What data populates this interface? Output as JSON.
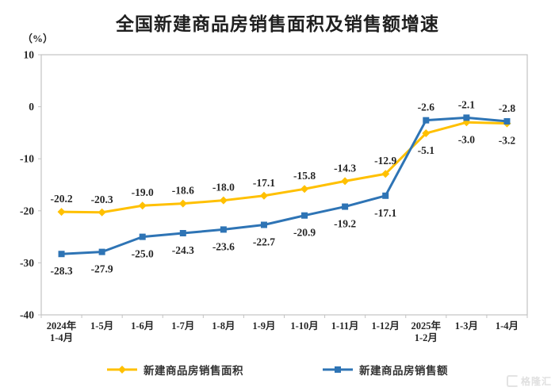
{
  "chart": {
    "title": "全国新建商品房销售面积及销售额增速",
    "unit_label": "（%）",
    "watermark": "格隆汇"
  },
  "colors": {
    "sales_area_accent": "#FFC000",
    "sales_amount_accent": "#2E74B5",
    "frame": "#c3c3c3",
    "text": "#262626"
  },
  "chart_data": {
    "type": "line",
    "title": "全国新建商品房销售面积及销售额增速",
    "ylabel": "（%）",
    "xlabel": "",
    "grid": false,
    "legend_position": "bottom",
    "ylim": [
      -40,
      10
    ],
    "y_ticks": [
      10,
      0,
      -10,
      -20,
      -30,
      -40
    ],
    "categories": [
      "2024年\n1-4月",
      "1-5月",
      "1-6月",
      "1-7月",
      "1-8月",
      "1-9月",
      "1-10月",
      "1-11月",
      "1-12月",
      "2025年\n1-2月",
      "1-3月",
      "1-4月"
    ],
    "series": [
      {
        "id": "sales-area",
        "name": "新建商品房销售面积",
        "color": "#FFC000",
        "marker": "diamond",
        "values": [
          -20.2,
          -20.3,
          -19.0,
          -18.6,
          -18.0,
          -17.1,
          -15.8,
          -14.3,
          -12.9,
          -5.1,
          -3.0,
          -3.2
        ],
        "label_positions": [
          "above",
          "above",
          "above",
          "above",
          "above",
          "above",
          "above",
          "above",
          "above",
          "below",
          "below",
          "below"
        ]
      },
      {
        "id": "sales-amount",
        "name": "新建商品房销售额",
        "color": "#2E74B5",
        "marker": "square",
        "values": [
          -28.3,
          -27.9,
          -25.0,
          -24.3,
          -23.6,
          -22.7,
          -20.9,
          -19.2,
          -17.1,
          -2.6,
          -2.1,
          -2.8
        ],
        "label_positions": [
          "below",
          "below",
          "below",
          "below",
          "below",
          "below",
          "below",
          "below",
          "below",
          "above",
          "above",
          "above"
        ]
      }
    ]
  }
}
